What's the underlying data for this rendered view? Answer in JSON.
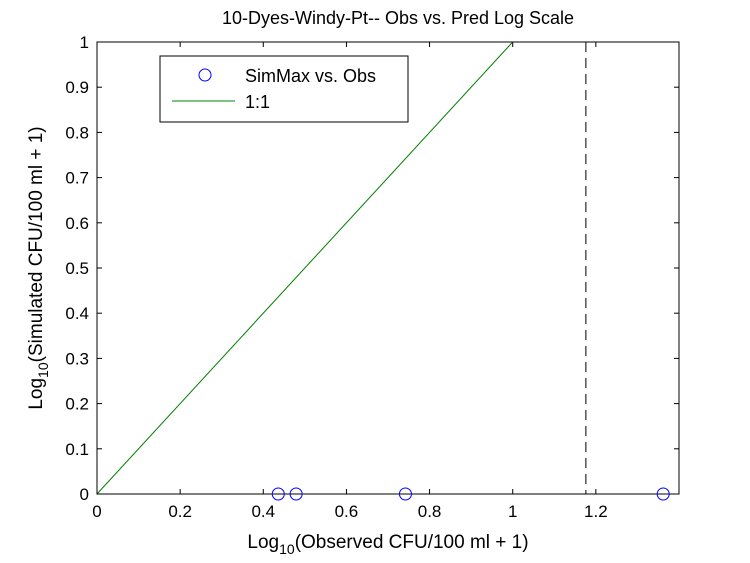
{
  "chart_data": {
    "type": "scatter",
    "title": "10-Dyes-Windy-Pt-- Obs vs. Pred Log Scale",
    "xlabel": {
      "prefix": "Log",
      "sub": "10",
      "rest": "(Observed CFU/100 ml + 1)"
    },
    "ylabel": {
      "prefix": "Log",
      "sub": "10",
      "rest": "(Simulated CFU/100 ml + 1)"
    },
    "xlim": [
      0,
      1.4
    ],
    "ylim": [
      0,
      1
    ],
    "xticks": [
      0,
      0.2,
      0.4,
      0.6,
      0.8,
      1,
      1.2
    ],
    "xtick_labels": [
      "0",
      "0.2",
      "0.4",
      "0.6",
      "0.8",
      "1",
      "1.2"
    ],
    "yticks": [
      0,
      0.1,
      0.2,
      0.3,
      0.4,
      0.5,
      0.6,
      0.7,
      0.8,
      0.9,
      1
    ],
    "ytick_labels": [
      "0",
      "0.1",
      "0.2",
      "0.3",
      "0.4",
      "0.5",
      "0.6",
      "0.7",
      "0.8",
      "0.9",
      "1"
    ],
    "grid": false,
    "legend_position": "top-left",
    "series": [
      {
        "name": "SimMax vs. Obs",
        "kind": "markers",
        "marker": "circle",
        "color": "#0000ff",
        "x": [
          0.436,
          0.479,
          0.742,
          1.362
        ],
        "y": [
          0,
          0,
          0,
          0
        ]
      },
      {
        "name": "1:1",
        "kind": "line",
        "color": "#008000",
        "x": [
          0,
          1
        ],
        "y": [
          0,
          1
        ]
      }
    ],
    "reference_lines": [
      {
        "orientation": "vertical",
        "x": 1.176,
        "style": "dashed",
        "color": "#000000"
      }
    ]
  }
}
